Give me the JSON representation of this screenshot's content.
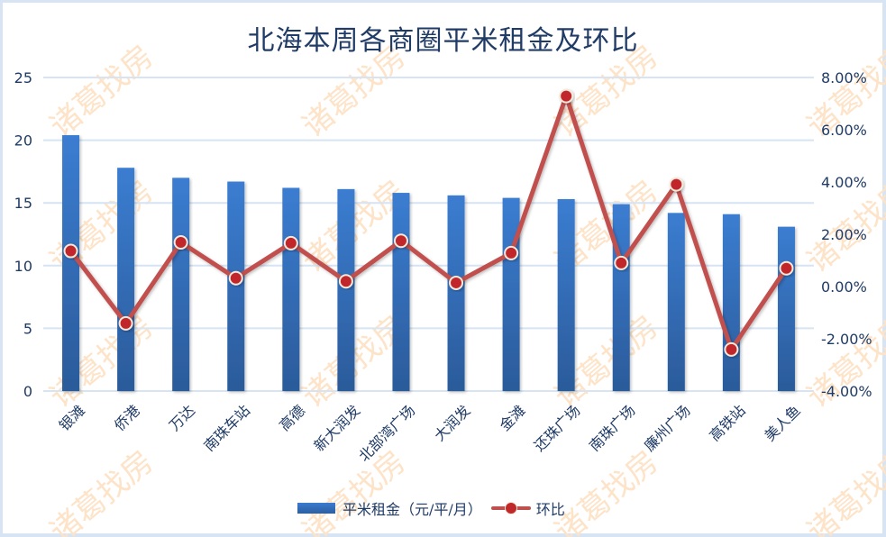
{
  "chart_data": {
    "type": "bar+line",
    "title": "北海本周各商圈平米租金及环比",
    "categories": [
      "银滩",
      "侨港",
      "万达",
      "南珠车站",
      "高德",
      "新大润发",
      "北部湾广场",
      "大润发",
      "金滩",
      "还珠广场",
      "南珠广场",
      "廉州广场",
      "高铁站",
      "美人鱼"
    ],
    "series": [
      {
        "name": "平米租金（元/平/月）",
        "type": "bar",
        "axis": "left",
        "color": "#3a78c9",
        "values": [
          20.4,
          17.8,
          17.0,
          16.7,
          16.2,
          16.1,
          15.8,
          15.6,
          15.4,
          15.3,
          14.9,
          14.2,
          14.1,
          13.1
        ]
      },
      {
        "name": "环比",
        "type": "line",
        "axis": "right",
        "color": "#c0504d",
        "unit": "%",
        "values": [
          1.36,
          -1.41,
          1.69,
          0.32,
          1.66,
          0.2,
          1.75,
          0.14,
          1.28,
          7.29,
          0.9,
          3.91,
          -2.41,
          0.7
        ]
      }
    ],
    "left_axis": {
      "min": 0,
      "max": 25,
      "step": 5,
      "ticks": [
        "0",
        "5",
        "10",
        "15",
        "20",
        "25"
      ]
    },
    "right_axis": {
      "min": -4,
      "max": 8,
      "step": 2,
      "ticks": [
        "-4.00%",
        "-2.00%",
        "0.00%",
        "2.00%",
        "4.00%",
        "6.00%",
        "8.00%"
      ]
    },
    "xlabel": "",
    "ylabel": "",
    "grid": true,
    "legend_position": "bottom"
  },
  "watermark": "诸葛找房",
  "legend": {
    "bar_label": "平米租金（元/平/月）",
    "line_label": "环比"
  },
  "colors": {
    "bar_top": "#3b7dd1",
    "bar_bottom": "#2b5b9a",
    "line": "#c0504d",
    "marker": "#c0282a",
    "grid": "#d6e4f3",
    "axis_text": "#1f3b66",
    "watermark": "#fde3c8"
  }
}
